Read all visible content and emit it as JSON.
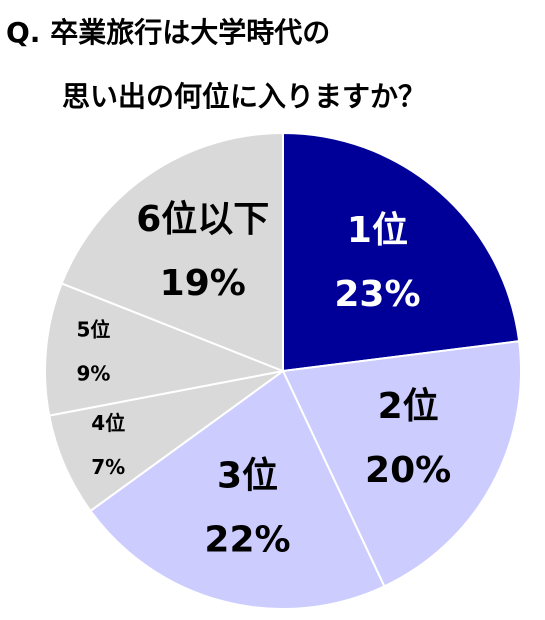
{
  "chart_data": {
    "type": "pie",
    "title": [
      "Q. 卒業旅行は大学時代の",
      "思い出の何位に入りますか？"
    ],
    "categories": [
      "1位",
      "2位",
      "3位",
      "4位",
      "5位",
      "6位以下"
    ],
    "values": [
      23,
      20,
      22,
      7,
      9,
      19
    ],
    "value_labels": [
      "23%",
      "20%",
      "22%",
      "7%",
      "9%",
      "19%"
    ],
    "colors": [
      "#000099",
      "#ccccff",
      "#ccccff",
      "#d9d9d9",
      "#d9d9d9",
      "#d9d9d9"
    ]
  }
}
